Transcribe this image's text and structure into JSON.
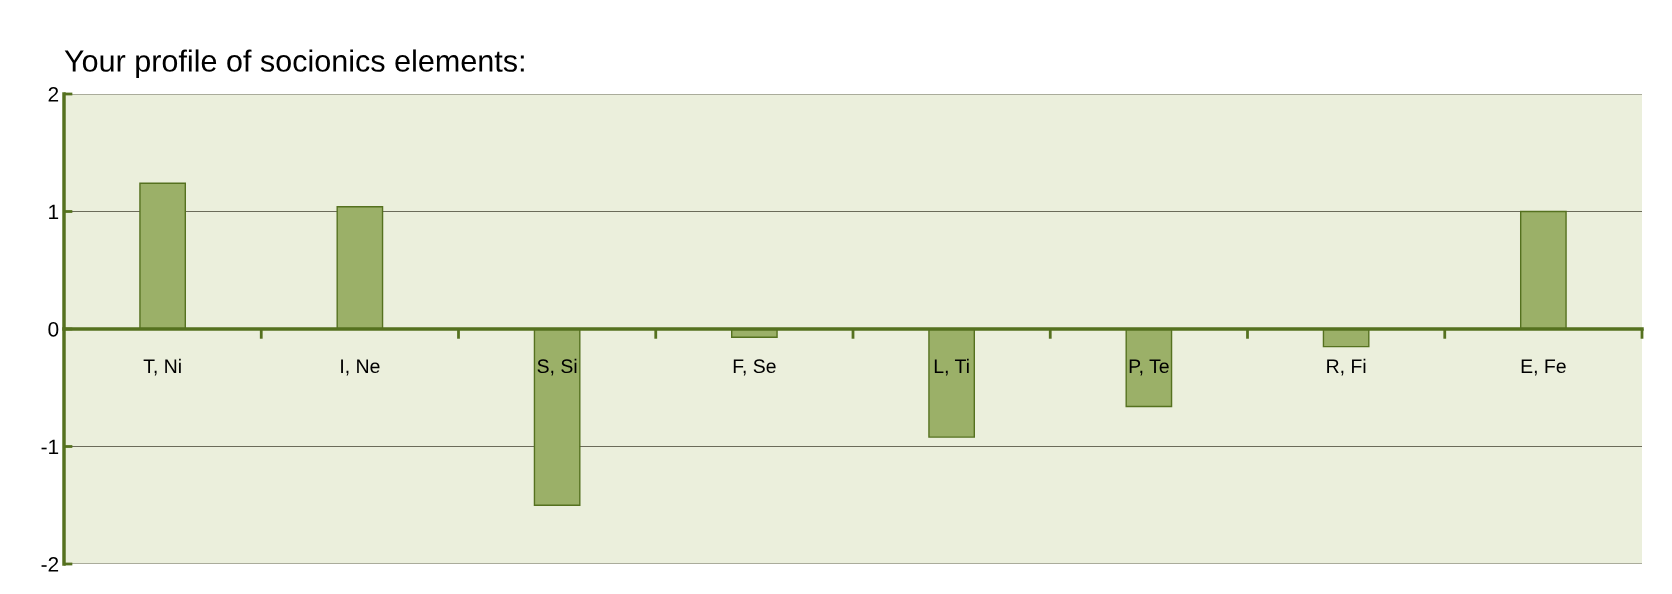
{
  "chart_data": {
    "type": "bar",
    "title": "Your profile of socionics elements:",
    "categories": [
      "T, Ni",
      "I, Ne",
      "S, Si",
      "F, Se",
      "L, Ti",
      "P, Te",
      "R, Fi",
      "E, Fe"
    ],
    "values": [
      1.24,
      1.04,
      -1.5,
      -0.07,
      -0.92,
      -0.66,
      -0.15,
      1.0
    ],
    "color": "#9bb068",
    "ylim": [
      -2,
      2
    ],
    "yticks": [
      -2,
      -1,
      0,
      1,
      2
    ],
    "grid": "y"
  }
}
